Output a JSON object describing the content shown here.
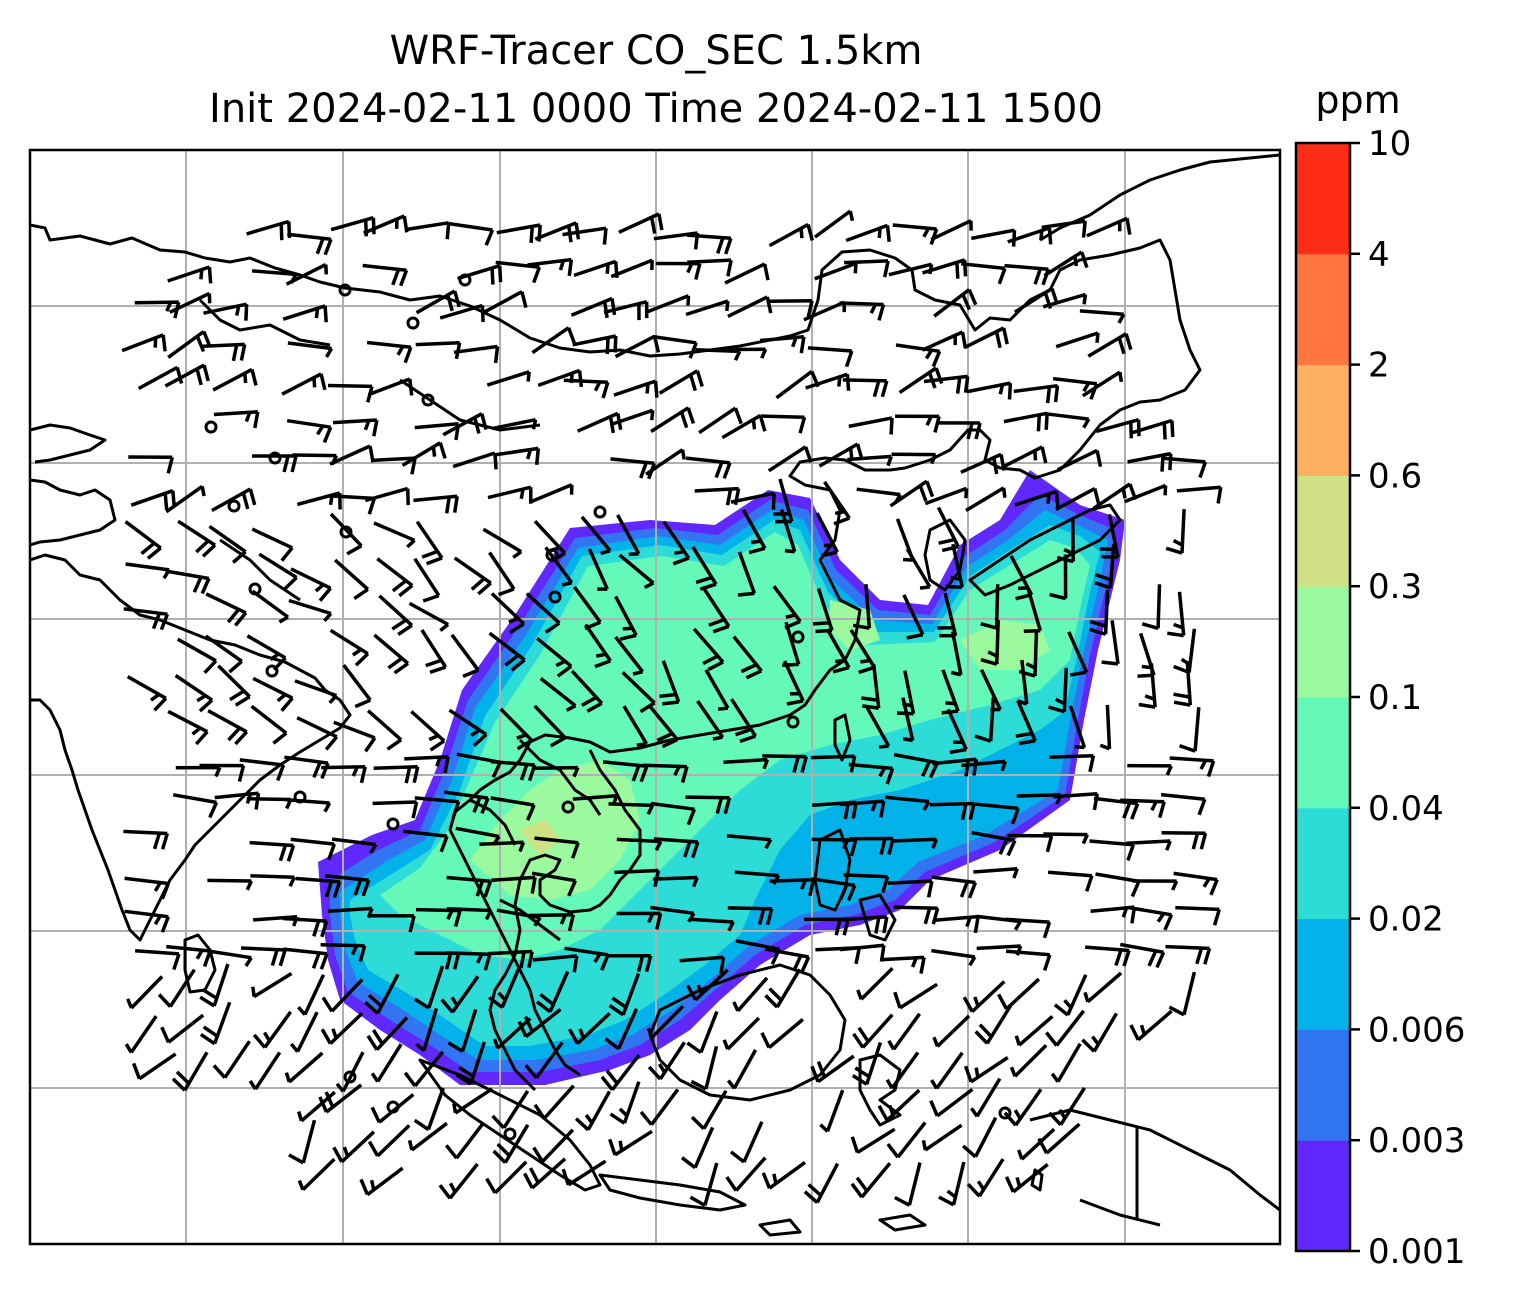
{
  "title_line1": "WRF-Tracer CO_SEC 1.5km",
  "title_line2": "Init 2024-02-11 0000 Time 2024-02-11 1500",
  "colorbar": {
    "unit": "ppm",
    "levels": [
      "0.001",
      "0.003",
      "0.006",
      "0.02",
      "0.04",
      "0.1",
      "0.3",
      "0.6",
      "2",
      "4",
      "10"
    ],
    "colors": [
      "#6128fb",
      "#3275f2",
      "#03b2e9",
      "#2ddcd7",
      "#64f8b9",
      "#9cfa9e",
      "#d0e084",
      "#fdb062",
      "#ff7640",
      "#ff2d17"
    ]
  },
  "map": {
    "gridlines": true,
    "coastline_color": "#000000",
    "grid_color": "#b0b0b0",
    "overlay": "wind barbs"
  }
}
